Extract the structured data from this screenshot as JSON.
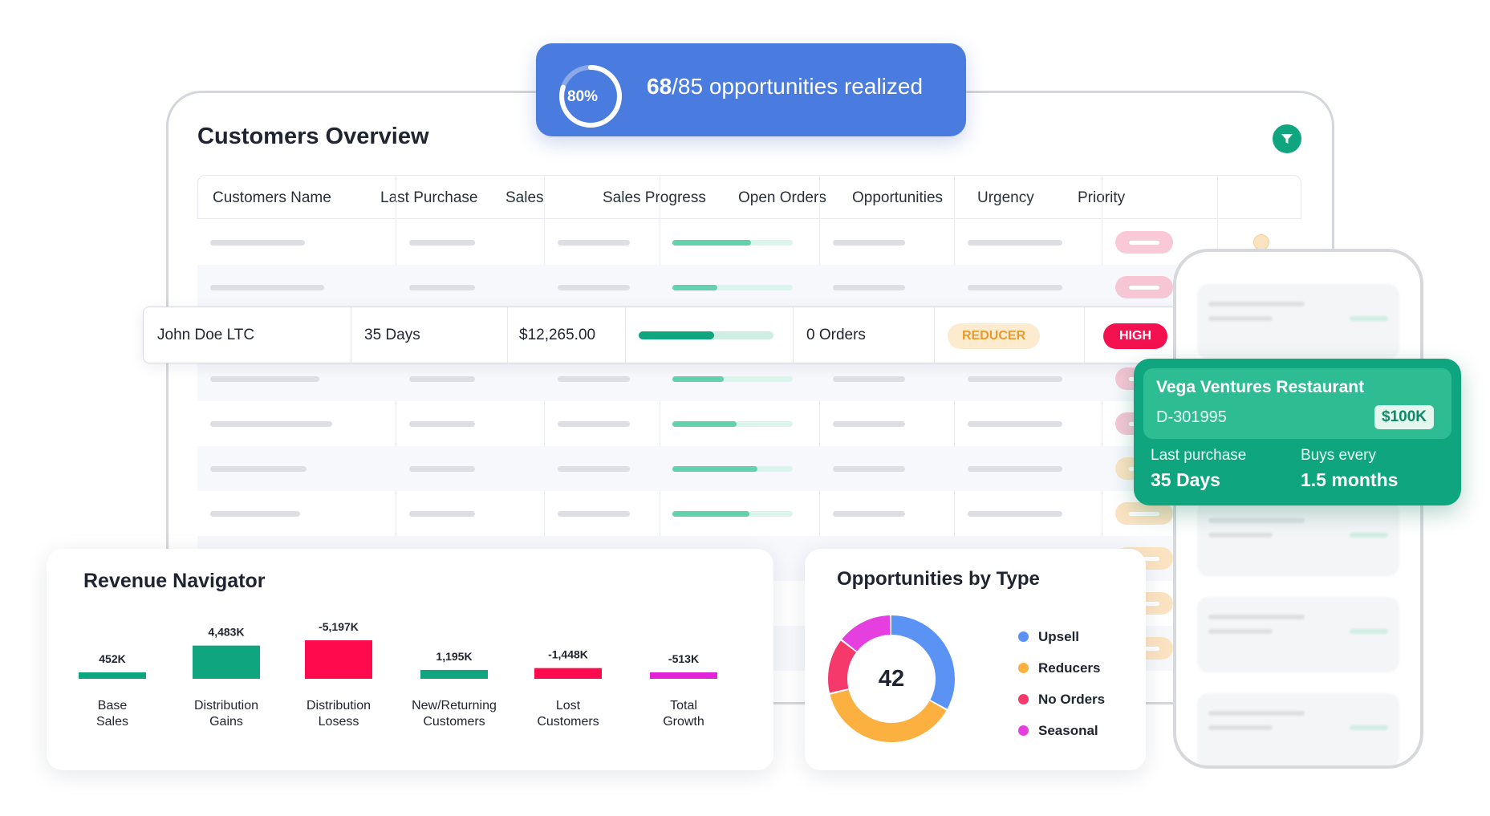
{
  "banner": {
    "gauge_percent_label": "80%",
    "gauge_fraction": 0.8,
    "realized": "68",
    "rest": "/85 opportunities realized"
  },
  "overview": {
    "title": "Customers Overview",
    "columns": [
      "Customers Name",
      "Last Purchase",
      "Sales",
      "Sales Progress",
      "Open Orders",
      "Opportunities",
      "Urgency",
      "Priority"
    ],
    "focused_row": {
      "name": "John Doe LTC",
      "last_purchase": "35 Days",
      "sales": "$12,265.00",
      "sales_progress": 0.56,
      "open_orders": "0 Orders",
      "opportunity": "REDUCER",
      "urgency": "HIGH"
    }
  },
  "vega": {
    "name": "Vega Ventures Restaurant",
    "id": "D-301995",
    "amount": "$100K",
    "last_purchase_label": "Last purchase",
    "last_purchase_value": "35 Days",
    "buys_every_label": "Buys every",
    "buys_every_value": "1.5 months"
  },
  "revenue": {
    "title": "Revenue Navigator"
  },
  "chart_data": [
    {
      "type": "bar",
      "title": "Revenue Navigator",
      "categories": [
        "Base Sales",
        "Distribution Gains",
        "Distribution Losess",
        "New/Returning Customers",
        "Lost Customers",
        "Total Growth"
      ],
      "category_lines": [
        [
          "Base",
          "Sales"
        ],
        [
          "Distribution",
          "Gains"
        ],
        [
          "Distribution",
          "Losess"
        ],
        [
          "New/Returning",
          "Customers"
        ],
        [
          "Lost",
          "Customers"
        ],
        [
          "Total",
          "Growth"
        ]
      ],
      "values": [
        452,
        4483,
        -5197,
        1195,
        -1448,
        -513
      ],
      "value_labels": [
        "452K",
        "4,483K",
        "-5,197K",
        "1,195K",
        "-1,448K",
        "-513K"
      ],
      "colors": [
        "#0fa57f",
        "#0fa57f",
        "#ff0a4c",
        "#0fa57f",
        "#ff0a4c",
        "#e224d8"
      ]
    },
    {
      "type": "pie",
      "title": "Opportunities by Type",
      "total": "42",
      "labels": [
        "Upsell",
        "Reducers",
        "No Orders",
        "Seasonal"
      ],
      "values": [
        14,
        16,
        6,
        6
      ],
      "colors": [
        "#5b93f5",
        "#fbb040",
        "#f5396a",
        "#e63fe0"
      ]
    }
  ]
}
